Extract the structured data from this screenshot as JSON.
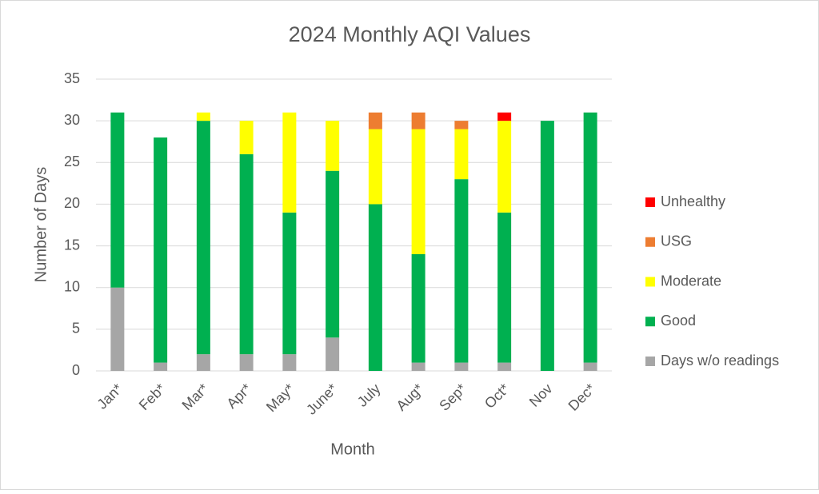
{
  "chart_data": {
    "type": "stacked_bar",
    "title": "2024 Monthly AQI Values",
    "x_label": "Month",
    "y_label": "Number of Days",
    "categories": [
      "Jan*",
      "Feb*",
      "Mar*",
      "Apr*",
      "May*",
      "June*",
      "July",
      "Aug*",
      "Sep*",
      "Oct*",
      "Nov",
      "Dec*"
    ],
    "series": [
      {
        "name": "Days w/o readings",
        "color": "#a6a6a6",
        "values": [
          10,
          1,
          2,
          2,
          2,
          4,
          0,
          1,
          1,
          1,
          0,
          1
        ]
      },
      {
        "name": "Good",
        "color": "#00b050",
        "values": [
          21,
          27,
          28,
          24,
          17,
          20,
          20,
          13,
          22,
          18,
          30,
          30
        ]
      },
      {
        "name": "Moderate",
        "color": "#ffff00",
        "values": [
          0,
          0,
          1,
          4,
          12,
          6,
          9,
          15,
          6,
          11,
          0,
          0
        ]
      },
      {
        "name": "USG",
        "color": "#ed7d31",
        "values": [
          0,
          0,
          0,
          0,
          0,
          0,
          2,
          2,
          1,
          0,
          0,
          0
        ]
      },
      {
        "name": "Unhealthy",
        "color": "#ff0000",
        "values": [
          0,
          0,
          0,
          0,
          0,
          0,
          0,
          0,
          0,
          1,
          0,
          0
        ]
      }
    ],
    "ylim": [
      0,
      35
    ],
    "yticks": [
      0,
      5,
      10,
      15,
      20,
      25,
      30,
      35
    ],
    "grid": true,
    "legend": "right"
  }
}
